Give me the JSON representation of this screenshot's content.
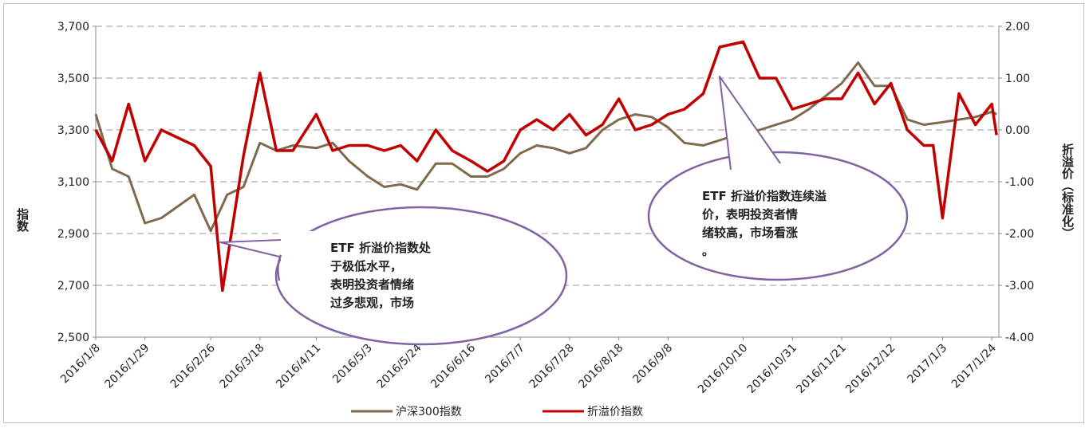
{
  "chart_data": {
    "type": "line",
    "title": "",
    "ylabel_left": "指数",
    "ylabel_right": "折溢价（标准化）",
    "y_left_range": [
      2500,
      3700
    ],
    "y_left_ticks": [
      "2,500",
      "2,700",
      "2,900",
      "3,100",
      "3,300",
      "3,500",
      "3,700"
    ],
    "y_right_range": [
      -4.0,
      2.0
    ],
    "y_right_ticks": [
      "-4.00",
      "-3.00",
      "-2.00",
      "-1.00",
      "0.00",
      "1.00",
      "2.00"
    ],
    "x_tick_labels": [
      "2016/1/8",
      "2016/1/29",
      "2016/2/26",
      "2016/3/18",
      "2016/4/11",
      "2016/5/3",
      "2016/5/24",
      "2016/6/16",
      "2016/7/7",
      "2016/7/28",
      "2016/8/18",
      "2016/9/8",
      "2016/10/10",
      "2016/10/31",
      "2016/11/21",
      "2016/12/12",
      "2017/1/3",
      "2017/1/24"
    ],
    "grid": "horizontal dashed",
    "legend_position": "bottom",
    "series": [
      {
        "name": "沪深300指数",
        "axis": "left",
        "color": "#7f6a4d",
        "x": [
          "2016/1/8",
          "2016/1/15",
          "2016/1/22",
          "2016/1/29",
          "2016/2/5",
          "2016/2/19",
          "2016/2/26",
          "2016/3/4",
          "2016/3/11",
          "2016/3/18",
          "2016/3/25",
          "2016/4/1",
          "2016/4/11",
          "2016/4/18",
          "2016/4/25",
          "2016/5/3",
          "2016/5/10",
          "2016/5/17",
          "2016/5/24",
          "2016/6/1",
          "2016/6/8",
          "2016/6/16",
          "2016/6/23",
          "2016/6/30",
          "2016/7/7",
          "2016/7/14",
          "2016/7/21",
          "2016/7/28",
          "2016/8/4",
          "2016/8/11",
          "2016/8/18",
          "2016/8/25",
          "2016/9/1",
          "2016/9/8",
          "2016/9/15",
          "2016/9/23",
          "2016/9/30",
          "2016/10/10",
          "2016/10/17",
          "2016/10/24",
          "2016/10/31",
          "2016/11/7",
          "2016/11/14",
          "2016/11/21",
          "2016/11/28",
          "2016/12/5",
          "2016/12/12",
          "2016/12/19",
          "2016/12/26",
          "2017/1/3",
          "2017/1/10",
          "2017/1/17",
          "2017/1/24",
          "2017/1/26"
        ],
        "y": [
          3361,
          3150,
          3120,
          2940,
          2960,
          3050,
          2910,
          3050,
          3080,
          3250,
          3220,
          3240,
          3230,
          3250,
          3180,
          3120,
          3080,
          3090,
          3070,
          3170,
          3170,
          3120,
          3120,
          3150,
          3210,
          3240,
          3230,
          3210,
          3230,
          3300,
          3340,
          3360,
          3350,
          3310,
          3250,
          3240,
          3260,
          3290,
          3300,
          3320,
          3340,
          3380,
          3430,
          3480,
          3560,
          3470,
          3470,
          3340,
          3320,
          3330,
          3340,
          3350,
          3370,
          3360
        ]
      },
      {
        "name": "折溢价指数",
        "axis": "right",
        "color": "#c00000",
        "x": [
          "2016/1/8",
          "2016/1/15",
          "2016/1/22",
          "2016/1/29",
          "2016/2/5",
          "2016/2/19",
          "2016/2/26",
          "2016/3/2",
          "2016/3/11",
          "2016/3/18",
          "2016/3/25",
          "2016/4/1",
          "2016/4/11",
          "2016/4/18",
          "2016/4/25",
          "2016/5/3",
          "2016/5/10",
          "2016/5/17",
          "2016/5/24",
          "2016/6/1",
          "2016/6/8",
          "2016/6/16",
          "2016/6/23",
          "2016/6/30",
          "2016/7/7",
          "2016/7/14",
          "2016/7/21",
          "2016/7/28",
          "2016/8/4",
          "2016/8/11",
          "2016/8/18",
          "2016/8/25",
          "2016/9/1",
          "2016/9/8",
          "2016/9/15",
          "2016/9/23",
          "2016/9/30",
          "2016/10/10",
          "2016/10/17",
          "2016/10/24",
          "2016/10/31",
          "2016/11/7",
          "2016/11/14",
          "2016/11/21",
          "2016/11/28",
          "2016/12/5",
          "2016/12/12",
          "2016/12/19",
          "2016/12/26",
          "2016/12/30",
          "2017/1/3",
          "2017/1/10",
          "2017/1/17",
          "2017/1/24",
          "2017/1/26"
        ],
        "y": [
          0.0,
          -0.6,
          0.5,
          -0.6,
          0.0,
          -0.3,
          -0.7,
          -3.1,
          -0.5,
          1.1,
          -0.4,
          -0.4,
          0.3,
          -0.4,
          -0.3,
          -0.3,
          -0.4,
          -0.3,
          -0.6,
          0.0,
          -0.4,
          -0.6,
          -0.8,
          -0.6,
          0.0,
          0.2,
          0.0,
          0.3,
          -0.1,
          0.1,
          0.6,
          0.0,
          0.1,
          0.3,
          0.4,
          0.7,
          1.6,
          1.7,
          1.0,
          1.0,
          0.4,
          0.5,
          0.6,
          0.6,
          1.1,
          0.5,
          0.9,
          0.0,
          -0.3,
          -0.3,
          -1.7,
          0.7,
          0.1,
          0.5,
          -0.1
        ]
      }
    ],
    "annotations": [
      {
        "text": "ETF 折溢价指数处于极低水平，表明投资者情绪过多悲观，市场会迎来反弹。"
      },
      {
        "text": "ETF 折溢价指数连续溢价，表明投资者情绪较高，市场看涨。"
      }
    ],
    "legend": [
      "沪深300指数",
      "折溢价指数"
    ]
  }
}
